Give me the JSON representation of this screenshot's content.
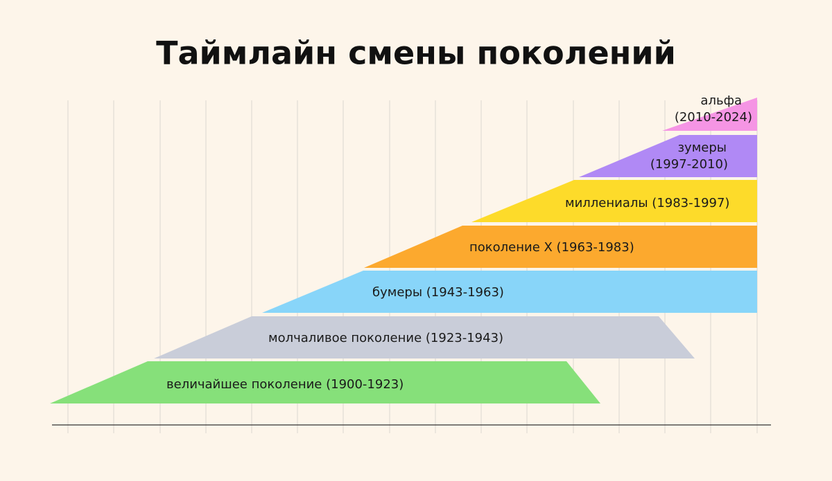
{
  "title": "Таймлайн смены поколений",
  "bands": [
    {
      "lines": [
        "величайшее поколение (1900-1923)"
      ]
    },
    {
      "lines": [
        "молчаливое поколение (1923-1943)"
      ]
    },
    {
      "lines": [
        "бумеры (1943-1963)"
      ]
    },
    {
      "lines": [
        "поколение X (1963-1983)"
      ]
    },
    {
      "lines": [
        "миллениалы (1983-1997)"
      ]
    },
    {
      "lines": [
        "зумеры",
        "(1997-2010)"
      ]
    },
    {
      "lines": [
        "альфа",
        "(2010-2024)"
      ]
    }
  ]
}
